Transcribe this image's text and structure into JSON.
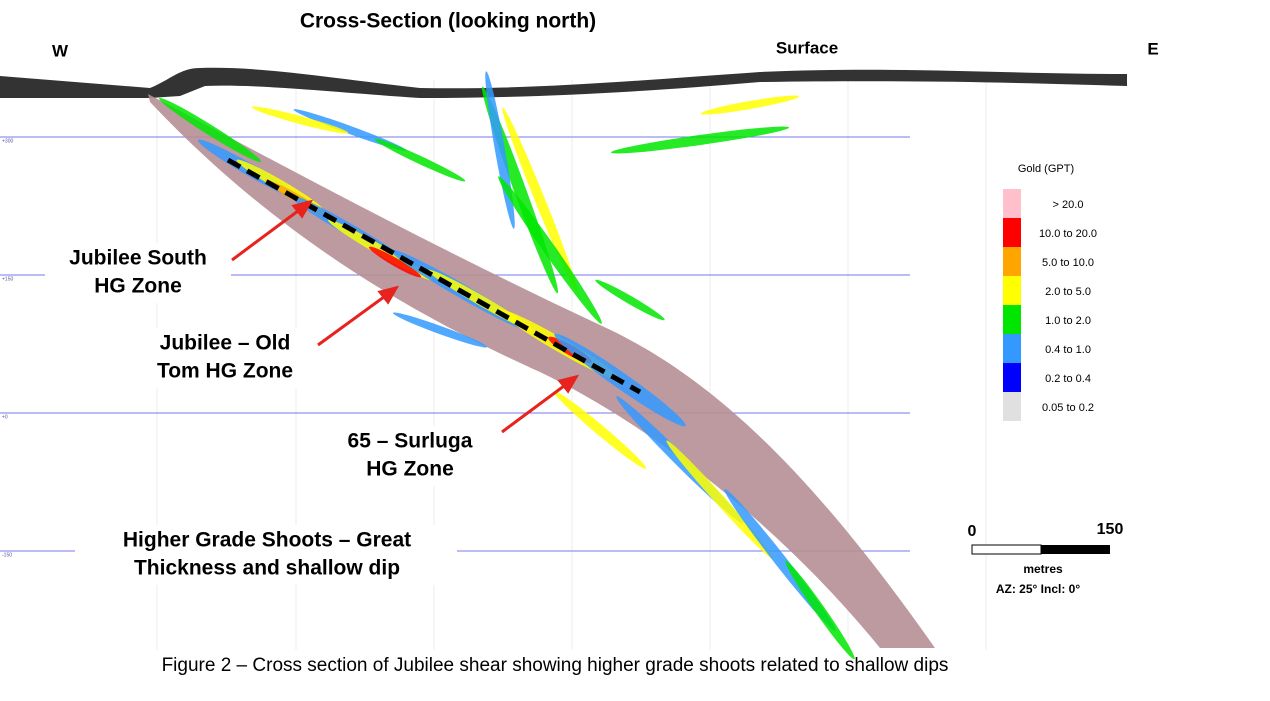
{
  "header": {
    "title": "Cross-Section (looking north)",
    "west": "W",
    "east": "E",
    "surface": "Surface"
  },
  "elevations": [
    "+300",
    "+150",
    "+0",
    "-150"
  ],
  "labels": [
    {
      "lines": [
        "Jubilee South",
        "HG Zone"
      ]
    },
    {
      "lines": [
        "Jubilee – Old",
        "Tom HG Zone"
      ]
    },
    {
      "lines": [
        "65 – Surluga",
        "HG Zone"
      ]
    },
    {
      "lines": [
        "Higher Grade Shoots – Great",
        "Thickness and shallow dip"
      ]
    }
  ],
  "legend": {
    "title": "Gold (GPT)",
    "items": [
      {
        "label": "> 20.0",
        "color": "#ffc0cb"
      },
      {
        "label": "10.0 to 20.0",
        "color": "#ff0000"
      },
      {
        "label": "5.0 to 10.0",
        "color": "#ffa500"
      },
      {
        "label": "2.0 to 5.0",
        "color": "#ffff00"
      },
      {
        "label": "1.0 to 2.0",
        "color": "#00e600"
      },
      {
        "label": "0.4 to 1.0",
        "color": "#3399ff"
      },
      {
        "label": "0.2 to 0.4",
        "color": "#0000ff"
      },
      {
        "label": "0.05 to 0.2",
        "color": "#e0e0e0"
      }
    ]
  },
  "scale": {
    "start": "0",
    "end": "150",
    "unit": "metres",
    "orientation": "AZ: 25°  Incl: 0°"
  },
  "caption": "Figure  2 – Cross section of Jubilee shear showing higher grade shoots related to shallow dips"
}
